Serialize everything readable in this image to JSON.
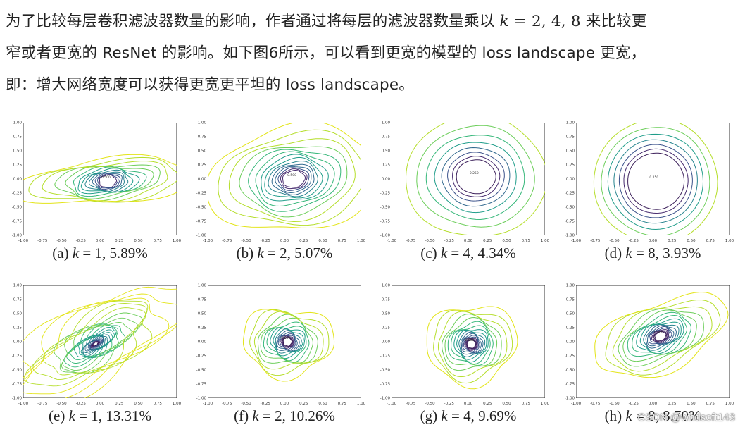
{
  "paragraph": {
    "line1_pre": "为了比较每层卷积滤波器数量的影响，作者通过将每层的滤波器数量乘以 ",
    "k_symbol": "k",
    "eq_values": " = 2, 4, 8",
    "line1_post": " 来比较更",
    "line2": "窄或者更宽的 ResNet 的影响。如下图6所示，可以看到更宽的模型的 loss landscape 更宽，",
    "line3": "即：增大网络宽度可以获得更宽更平坦的 loss landscape。"
  },
  "figure": {
    "tick_labels": [
      "-1.00",
      "-0.75",
      "-0.50",
      "-0.25",
      "0.00",
      "0.25",
      "0.50",
      "0.75",
      "1.00"
    ],
    "panels": [
      {
        "letter": "(a)",
        "k": "k",
        "eq": " = 1, 5.89%",
        "center_label": "0.500"
      },
      {
        "letter": "(b)",
        "k": "k",
        "eq": " = 2, 5.07%",
        "center_label": "0.500"
      },
      {
        "letter": "(c)",
        "k": "k",
        "eq": " = 4, 4.34%",
        "center_label": "0.250"
      },
      {
        "letter": "(d)",
        "k": "k",
        "eq": " = 8, 3.93%",
        "center_label": "0.250"
      },
      {
        "letter": "(e)",
        "k": "k",
        "eq": " = 1, 13.31%",
        "center_label": ""
      },
      {
        "letter": "(f)",
        "k": "k",
        "eq": " = 2, 10.26%",
        "center_label": "0.500"
      },
      {
        "letter": "(g)",
        "k": "k",
        "eq": " = 4, 9.69%",
        "center_label": "0.500"
      },
      {
        "letter": "(h)",
        "k": "k",
        "eq": " = 8, 8.70%",
        "center_label": "0.500"
      }
    ]
  },
  "watermark": "CSDN @whdsoft143"
}
